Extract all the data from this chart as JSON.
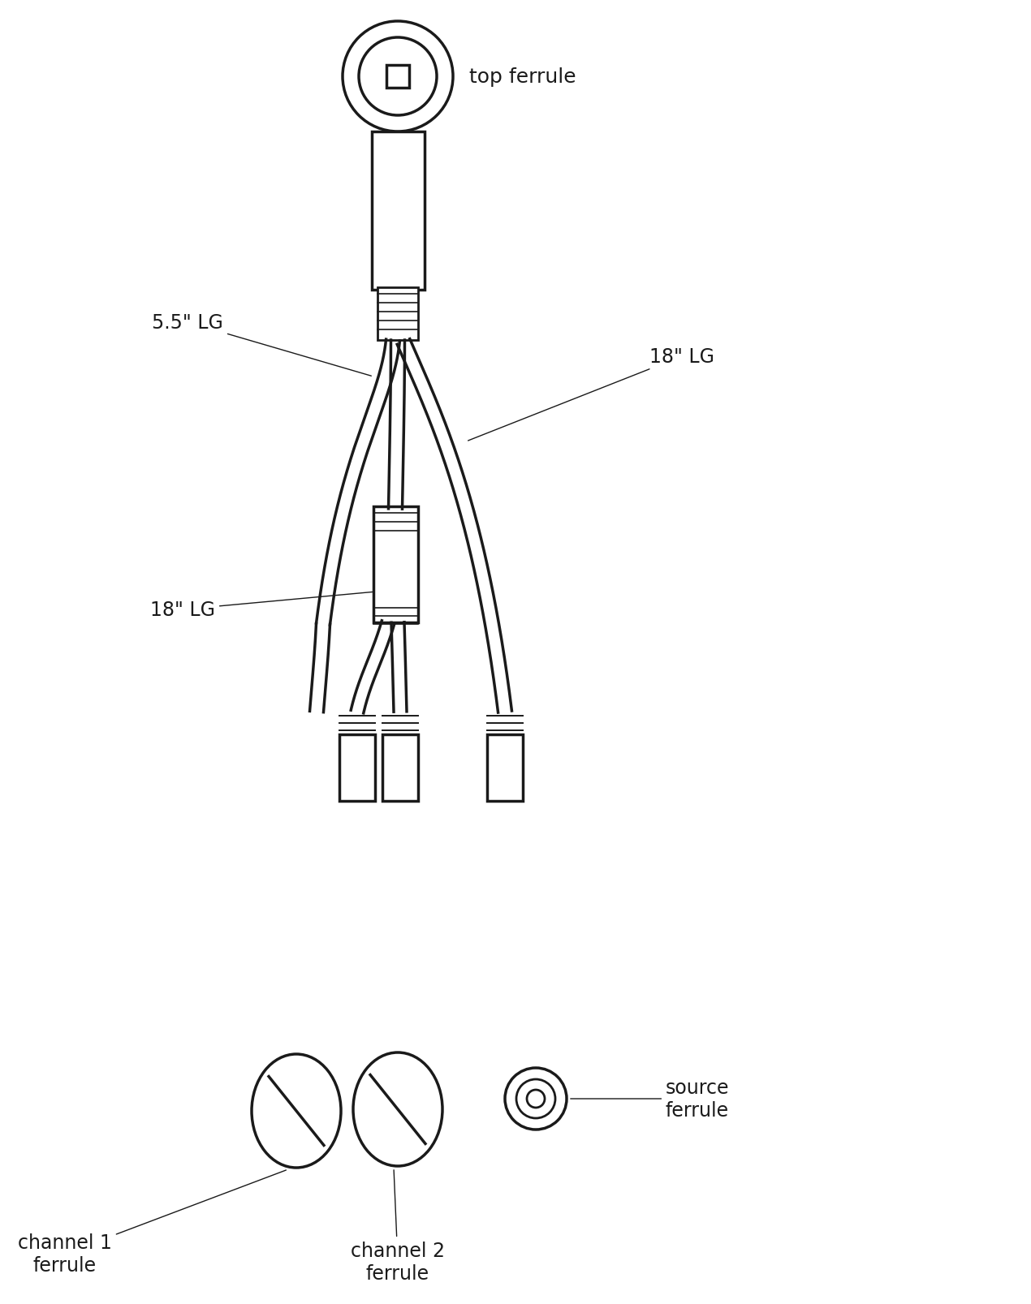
{
  "bg_color": "#ffffff",
  "line_color": "#1a1a1a",
  "line_width": 2.0,
  "fig_width": 12.7,
  "fig_height": 16.08,
  "labels": {
    "top_ferrule": "top ferrule",
    "label_55lg": "5.5\" LG",
    "label_18lg_right": "18\" LG",
    "label_18lg_left": "18\" LG",
    "ch1_ferrule": "channel 1\nferrule",
    "ch2_ferrule": "channel 2\nferrule",
    "source_ferrule": "source\nferrule"
  },
  "font_size": 18
}
